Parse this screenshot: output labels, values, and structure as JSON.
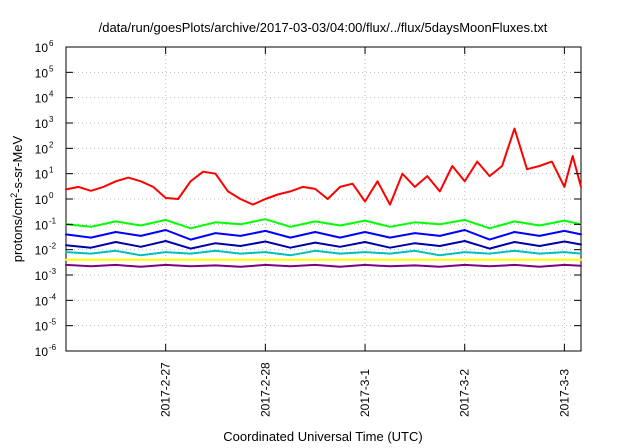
{
  "chart_data": {
    "type": "line",
    "title": "/data/run/goesPlots/archive/2017-03-03/04:00/flux/../flux/5daysMoonFluxes.txt",
    "xlabel": "Coordinated Universal Time (UTC)",
    "ylabel": "protons/cm2-s-sr-MeV",
    "ylabel_parts": {
      "prefix": "protons/cm",
      "superscript": "2",
      "suffix": "-s-sr-MeV"
    },
    "y_scale": "log",
    "ylim": [
      1e-06,
      1000000
    ],
    "y_ticks": [
      {
        "value": 1e-06,
        "base": "10",
        "exp": "-6"
      },
      {
        "value": 1e-05,
        "base": "10",
        "exp": "-5"
      },
      {
        "value": 0.0001,
        "base": "10",
        "exp": "-4"
      },
      {
        "value": 0.001,
        "base": "10",
        "exp": "-3"
      },
      {
        "value": 0.01,
        "base": "10",
        "exp": "-2"
      },
      {
        "value": 0.1,
        "base": "10",
        "exp": "-1"
      },
      {
        "value": 1,
        "base": "10",
        "exp": "0"
      },
      {
        "value": 10,
        "base": "10",
        "exp": "1"
      },
      {
        "value": 100,
        "base": "10",
        "exp": "2"
      },
      {
        "value": 1000,
        "base": "10",
        "exp": "3"
      },
      {
        "value": 10000,
        "base": "10",
        "exp": "4"
      },
      {
        "value": 100000,
        "base": "10",
        "exp": "5"
      },
      {
        "value": 1000000,
        "base": "10",
        "exp": "6"
      }
    ],
    "x_scale": "date",
    "xlim": [
      "2017-02-26",
      "2017-03-03T04:00"
    ],
    "x_ticks": [
      "2017-2-27",
      "2017-2-28",
      "2017-3-1",
      "2017-3-2",
      "2017-3-3"
    ],
    "x_tick_dates": [
      "2017-02-27",
      "2017-02-28",
      "2017-03-01",
      "2017-03-02",
      "2017-03-03"
    ],
    "grid": true,
    "legend": "none",
    "series": [
      {
        "color": "#ff0000",
        "x": [
          "2017-02-26T00:00",
          "2017-02-26T03:00",
          "2017-02-26T06:00",
          "2017-02-26T09:00",
          "2017-02-26T12:00",
          "2017-02-26T15:00",
          "2017-02-26T18:00",
          "2017-02-26T21:00",
          "2017-02-27T00:00",
          "2017-02-27T03:00",
          "2017-02-27T06:00",
          "2017-02-27T09:00",
          "2017-02-27T12:00",
          "2017-02-27T15:00",
          "2017-02-27T18:00",
          "2017-02-27T21:00",
          "2017-02-28T00:00",
          "2017-02-28T03:00",
          "2017-02-28T06:00",
          "2017-02-28T09:00",
          "2017-02-28T12:00",
          "2017-02-28T15:00",
          "2017-02-28T18:00",
          "2017-02-28T21:00",
          "2017-03-01T00:00",
          "2017-03-01T03:00",
          "2017-03-01T06:00",
          "2017-03-01T09:00",
          "2017-03-01T12:00",
          "2017-03-01T15:00",
          "2017-03-01T18:00",
          "2017-03-01T21:00",
          "2017-03-02T00:00",
          "2017-03-02T03:00",
          "2017-03-02T06:00",
          "2017-03-02T09:00",
          "2017-03-02T12:00",
          "2017-03-02T15:00",
          "2017-03-02T18:00",
          "2017-03-02T21:00",
          "2017-03-03T00:00",
          "2017-03-03T02:00",
          "2017-03-03T04:00"
        ],
        "y": [
          2.4,
          3.0,
          2.1,
          3.0,
          5.0,
          7.0,
          5.0,
          3.0,
          1.1,
          1.0,
          5.0,
          12.0,
          10.0,
          2.0,
          1.0,
          0.6,
          1.0,
          1.5,
          2.0,
          3.0,
          2.5,
          1.0,
          3.0,
          4.0,
          0.8,
          5.0,
          0.6,
          10.0,
          3.0,
          8.0,
          2.0,
          20.0,
          5.0,
          30.0,
          8.0,
          20.0,
          600.0,
          15.0,
          20.0,
          30.0,
          3.0,
          50.0,
          3.0
        ]
      },
      {
        "color": "#00ff00",
        "x": [
          "2017-02-26T00:00",
          "2017-02-26T06:00",
          "2017-02-26T12:00",
          "2017-02-26T18:00",
          "2017-02-27T00:00",
          "2017-02-27T06:00",
          "2017-02-27T12:00",
          "2017-02-27T18:00",
          "2017-02-28T00:00",
          "2017-02-28T06:00",
          "2017-02-28T12:00",
          "2017-02-28T18:00",
          "2017-03-01T00:00",
          "2017-03-01T06:00",
          "2017-03-01T12:00",
          "2017-03-01T18:00",
          "2017-03-02T00:00",
          "2017-03-02T06:00",
          "2017-03-02T12:00",
          "2017-03-02T18:00",
          "2017-03-03T00:00",
          "2017-03-03T04:00"
        ],
        "y": [
          0.1,
          0.08,
          0.13,
          0.09,
          0.15,
          0.07,
          0.12,
          0.1,
          0.16,
          0.08,
          0.13,
          0.09,
          0.14,
          0.08,
          0.12,
          0.1,
          0.15,
          0.07,
          0.13,
          0.09,
          0.14,
          0.1
        ]
      },
      {
        "color": "#00bfbf",
        "x": [
          "2017-02-26T00:00",
          "2017-02-26T06:00",
          "2017-02-26T12:00",
          "2017-02-26T18:00",
          "2017-02-27T00:00",
          "2017-02-27T06:00",
          "2017-02-27T12:00",
          "2017-02-27T18:00",
          "2017-02-28T00:00",
          "2017-02-28T06:00",
          "2017-02-28T12:00",
          "2017-02-28T18:00",
          "2017-03-01T00:00",
          "2017-03-01T06:00",
          "2017-03-01T12:00",
          "2017-03-01T18:00",
          "2017-03-02T00:00",
          "2017-03-02T06:00",
          "2017-03-02T12:00",
          "2017-03-02T18:00",
          "2017-03-03T00:00",
          "2017-03-03T04:00"
        ],
        "y": [
          0.008,
          0.007,
          0.009,
          0.006,
          0.008,
          0.007,
          0.009,
          0.007,
          0.008,
          0.006,
          0.009,
          0.007,
          0.008,
          0.007,
          0.009,
          0.006,
          0.008,
          0.007,
          0.009,
          0.007,
          0.008,
          0.007
        ]
      },
      {
        "color": "#0000ff",
        "x": [
          "2017-02-26T00:00",
          "2017-02-26T06:00",
          "2017-02-26T12:00",
          "2017-02-26T18:00",
          "2017-02-27T00:00",
          "2017-02-27T06:00",
          "2017-02-27T12:00",
          "2017-02-27T18:00",
          "2017-02-28T00:00",
          "2017-02-28T06:00",
          "2017-02-28T12:00",
          "2017-02-28T18:00",
          "2017-03-01T00:00",
          "2017-03-01T06:00",
          "2017-03-01T12:00",
          "2017-03-01T18:00",
          "2017-03-02T00:00",
          "2017-03-02T06:00",
          "2017-03-02T12:00",
          "2017-03-02T18:00",
          "2017-03-03T00:00",
          "2017-03-03T04:00"
        ],
        "y": [
          0.04,
          0.03,
          0.05,
          0.035,
          0.06,
          0.025,
          0.045,
          0.035,
          0.055,
          0.03,
          0.05,
          0.03,
          0.05,
          0.03,
          0.045,
          0.035,
          0.06,
          0.025,
          0.05,
          0.035,
          0.055,
          0.04
        ]
      },
      {
        "color": "#0000aa",
        "x": [
          "2017-02-26T00:00",
          "2017-02-26T06:00",
          "2017-02-26T12:00",
          "2017-02-26T18:00",
          "2017-02-27T00:00",
          "2017-02-27T06:00",
          "2017-02-27T12:00",
          "2017-02-27T18:00",
          "2017-02-28T00:00",
          "2017-02-28T06:00",
          "2017-02-28T12:00",
          "2017-02-28T18:00",
          "2017-03-01T00:00",
          "2017-03-01T06:00",
          "2017-03-01T12:00",
          "2017-03-01T18:00",
          "2017-03-02T00:00",
          "2017-03-02T06:00",
          "2017-03-02T12:00",
          "2017-03-02T18:00",
          "2017-03-03T00:00",
          "2017-03-03T04:00"
        ],
        "y": [
          0.015,
          0.012,
          0.02,
          0.013,
          0.022,
          0.011,
          0.018,
          0.014,
          0.021,
          0.012,
          0.019,
          0.013,
          0.02,
          0.012,
          0.018,
          0.014,
          0.022,
          0.011,
          0.02,
          0.014,
          0.021,
          0.016
        ]
      },
      {
        "color": "#ffff00",
        "x": [
          "2017-02-26T00:00",
          "2017-02-27T00:00",
          "2017-02-28T00:00",
          "2017-03-01T00:00",
          "2017-03-02T00:00",
          "2017-03-03T00:00",
          "2017-03-03T04:00"
        ],
        "y": [
          0.004,
          0.004,
          0.004,
          0.004,
          0.004,
          0.004,
          0.004
        ]
      },
      {
        "color": "#800080",
        "x": [
          "2017-02-26T00:00",
          "2017-02-26T06:00",
          "2017-02-26T12:00",
          "2017-02-26T18:00",
          "2017-02-27T00:00",
          "2017-02-27T06:00",
          "2017-02-27T12:00",
          "2017-02-27T18:00",
          "2017-02-28T00:00",
          "2017-02-28T06:00",
          "2017-02-28T12:00",
          "2017-02-28T18:00",
          "2017-03-01T00:00",
          "2017-03-01T06:00",
          "2017-03-01T12:00",
          "2017-03-01T18:00",
          "2017-03-02T00:00",
          "2017-03-02T06:00",
          "2017-03-02T12:00",
          "2017-03-02T18:00",
          "2017-03-03T00:00",
          "2017-03-03T04:00"
        ],
        "y": [
          0.0025,
          0.0022,
          0.0025,
          0.0021,
          0.0025,
          0.0022,
          0.0024,
          0.0021,
          0.0025,
          0.0022,
          0.0025,
          0.0021,
          0.0025,
          0.0022,
          0.0024,
          0.0021,
          0.0025,
          0.0022,
          0.0025,
          0.0021,
          0.0025,
          0.0023
        ]
      }
    ]
  }
}
